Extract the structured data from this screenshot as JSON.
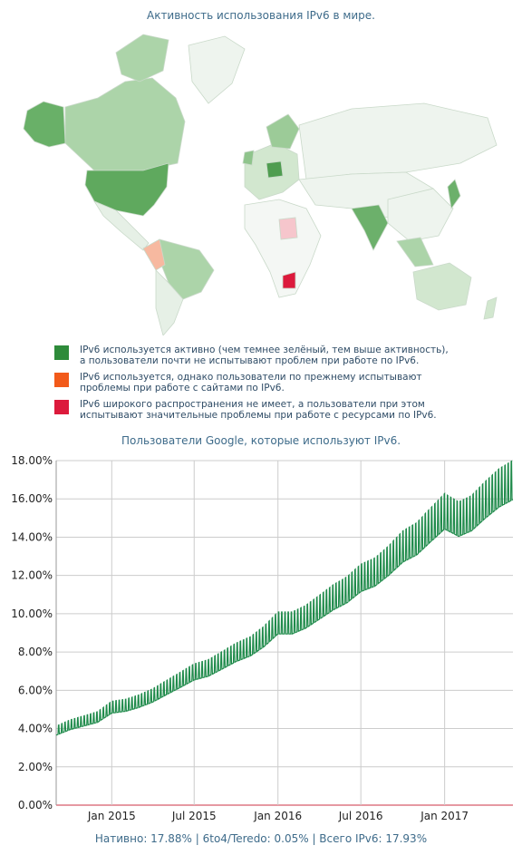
{
  "map": {
    "title": "Активность использования IPv6 в мире.",
    "legend": [
      {
        "color": "#2e8b3a",
        "text": "IPv6 используется активно (чем темнее зелёный, тем выше активность),\n а пользователи почти не испытывают проблем при работе по IPv6."
      },
      {
        "color": "#f25a1a",
        "text": "IPv6 используется, однако пользователи по прежнему испытывают\n проблемы при работе с сайтами по IPv6."
      },
      {
        "color": "#dc1a3c",
        "text": "IPv6 широкого распространения не имеет, а пользователи при этом\n испытывают значительные проблемы при работе с ресурсами по IPv6."
      }
    ]
  },
  "chart_data": {
    "type": "line",
    "title": "Пользователи Google, которые используют IPv6.",
    "x_ticks": [
      "Jan 2015",
      "Jul 2015",
      "Jan 2016",
      "Jul 2016",
      "Jan 2017"
    ],
    "y_ticks": [
      "0.00%",
      "2.00%",
      "4.00%",
      "6.00%",
      "8.00%",
      "10.00%",
      "12.00%",
      "14.00%",
      "16.00%",
      "18.00%"
    ],
    "ylim": [
      0,
      18
    ],
    "xlim": [
      "2014-09-01",
      "2017-05-31"
    ],
    "series": [
      {
        "color": "#1e8a4a",
        "points": [
          [
            "2014-09-01",
            3.8
          ],
          [
            "2014-10-01",
            4.1
          ],
          [
            "2014-11-01",
            4.3
          ],
          [
            "2014-12-01",
            4.5
          ],
          [
            "2015-01-01",
            5.0
          ],
          [
            "2015-02-01",
            5.1
          ],
          [
            "2015-03-01",
            5.3
          ],
          [
            "2015-04-01",
            5.6
          ],
          [
            "2015-05-01",
            6.0
          ],
          [
            "2015-06-01",
            6.4
          ],
          [
            "2015-07-01",
            6.8
          ],
          [
            "2015-08-01",
            7.0
          ],
          [
            "2015-09-01",
            7.4
          ],
          [
            "2015-10-01",
            7.8
          ],
          [
            "2015-11-01",
            8.1
          ],
          [
            "2015-12-01",
            8.6
          ],
          [
            "2016-01-01",
            9.3
          ],
          [
            "2016-02-01",
            9.3
          ],
          [
            "2016-03-01",
            9.6
          ],
          [
            "2016-04-01",
            10.1
          ],
          [
            "2016-05-01",
            10.6
          ],
          [
            "2016-06-01",
            11.0
          ],
          [
            "2016-07-01",
            11.6
          ],
          [
            "2016-08-01",
            11.9
          ],
          [
            "2016-09-01",
            12.5
          ],
          [
            "2016-10-01",
            13.2
          ],
          [
            "2016-11-01",
            13.6
          ],
          [
            "2016-12-01",
            14.3
          ],
          [
            "2017-01-01",
            15.0
          ],
          [
            "2017-02-01",
            14.6
          ],
          [
            "2017-03-01",
            14.9
          ],
          [
            "2017-04-01",
            15.6
          ],
          [
            "2017-05-01",
            16.2
          ],
          [
            "2017-05-31",
            16.6
          ]
        ]
      }
    ]
  },
  "footer": "Нативно: 17.88% | 6to4/Teredo: 0.05% | Всего IPv6: 17.93%"
}
